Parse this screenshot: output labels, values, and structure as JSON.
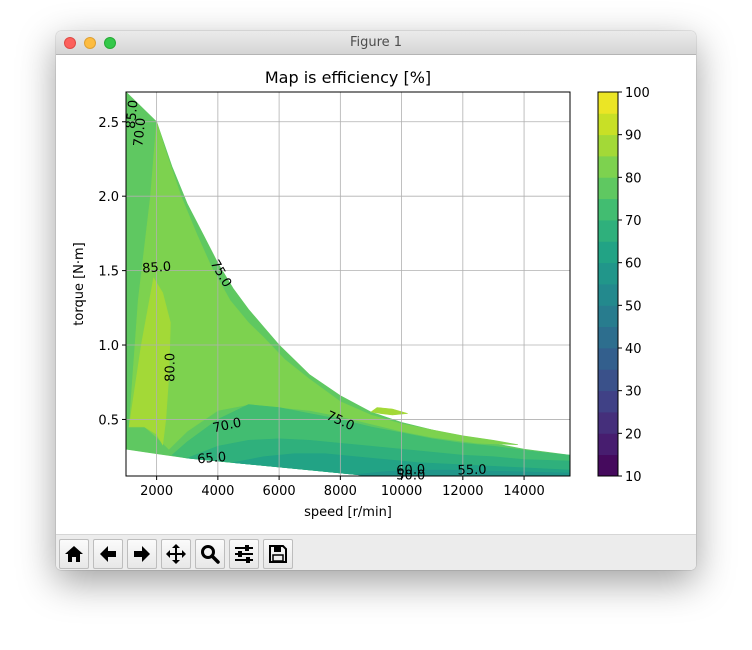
{
  "window": {
    "title": "Figure 1"
  },
  "toolbar": {
    "buttons": [
      {
        "name": "home-button",
        "icon": "home-icon"
      },
      {
        "name": "back-button",
        "icon": "arrow-left-icon"
      },
      {
        "name": "forward-button",
        "icon": "arrow-right-icon"
      },
      {
        "name": "pan-button",
        "icon": "move-icon"
      },
      {
        "name": "zoom-button",
        "icon": "magnifier-icon"
      },
      {
        "name": "configure-subplots-button",
        "icon": "sliders-icon"
      },
      {
        "name": "save-button",
        "icon": "floppy-disk-icon"
      }
    ]
  },
  "chart_data": {
    "type": "heatmap",
    "subtype": "filled-contour",
    "title": "Map is efficiency [%]",
    "xlabel": "speed [r/min]",
    "ylabel": "torque [N·m]",
    "xlim": [
      1000,
      15500
    ],
    "ylim": [
      0.12,
      2.7
    ],
    "xticks": [
      2000,
      4000,
      6000,
      8000,
      10000,
      12000,
      14000
    ],
    "yticks": [
      0.5,
      1.0,
      1.5,
      2.0,
      2.5
    ],
    "yticklabels": [
      "0.5",
      "1.0",
      "1.5",
      "2.0",
      "2.5"
    ],
    "grid": true,
    "colormap": "viridis",
    "colorbar": {
      "levels": [
        10,
        15,
        20,
        25,
        30,
        35,
        40,
        45,
        50,
        55,
        60,
        65,
        70,
        75,
        80,
        85,
        90,
        95,
        100
      ],
      "ticks": [
        10,
        20,
        30,
        40,
        50,
        60,
        70,
        80,
        90,
        100
      ]
    },
    "operating_envelope": [
      [
        1000,
        0.3
      ],
      [
        1000,
        2.7
      ],
      [
        1500,
        2.6
      ],
      [
        2000,
        2.5
      ],
      [
        2500,
        2.2
      ],
      [
        3000,
        1.95
      ],
      [
        3500,
        1.75
      ],
      [
        4000,
        1.55
      ],
      [
        4500,
        1.38
      ],
      [
        5000,
        1.24
      ],
      [
        5500,
        1.12
      ],
      [
        6000,
        1.0
      ],
      [
        6500,
        0.9
      ],
      [
        7000,
        0.8
      ],
      [
        8000,
        0.66
      ],
      [
        9000,
        0.55
      ],
      [
        10000,
        0.48
      ],
      [
        11000,
        0.43
      ],
      [
        12000,
        0.38
      ],
      [
        13000,
        0.34
      ],
      [
        14000,
        0.3
      ],
      [
        15500,
        0.26
      ],
      [
        15500,
        0.12
      ],
      [
        9000,
        0.12
      ],
      [
        7000,
        0.16
      ],
      [
        5000,
        0.2
      ],
      [
        3000,
        0.24
      ],
      [
        2000,
        0.27
      ],
      [
        1000,
        0.3
      ]
    ],
    "regions": [
      {
        "level": 75,
        "polygon": [
          [
            1000,
            0.5
          ],
          [
            1000,
            2.7
          ],
          [
            1500,
            2.6
          ],
          [
            2000,
            2.5
          ],
          [
            2500,
            2.2
          ],
          [
            3000,
            1.95
          ],
          [
            3500,
            1.75
          ],
          [
            4000,
            1.55
          ],
          [
            4500,
            1.38
          ],
          [
            5000,
            1.24
          ],
          [
            5500,
            1.12
          ],
          [
            6000,
            1.0
          ],
          [
            6500,
            0.9
          ],
          [
            7000,
            0.8
          ],
          [
            8000,
            0.66
          ],
          [
            9000,
            0.55
          ],
          [
            10000,
            0.48
          ],
          [
            11000,
            0.43
          ],
          [
            12000,
            0.38
          ],
          [
            13000,
            0.34
          ],
          [
            14000,
            0.3
          ],
          [
            15500,
            0.26
          ],
          [
            15500,
            0.12
          ],
          [
            9000,
            0.12
          ],
          [
            7000,
            0.16
          ],
          [
            5000,
            0.2
          ],
          [
            3000,
            0.24
          ],
          [
            2000,
            0.27
          ],
          [
            1000,
            0.3
          ]
        ]
      },
      {
        "level": 80,
        "polygon": [
          [
            1100,
            0.45
          ],
          [
            1400,
            1.3
          ],
          [
            1800,
            2.0
          ],
          [
            2000,
            2.5
          ],
          [
            2300,
            2.3
          ],
          [
            2800,
            2.0
          ],
          [
            3300,
            1.75
          ],
          [
            3800,
            1.52
          ],
          [
            4400,
            1.3
          ],
          [
            5000,
            1.15
          ],
          [
            5500,
            1.05
          ],
          [
            6200,
            0.9
          ],
          [
            7000,
            0.77
          ],
          [
            8000,
            0.62
          ],
          [
            9000,
            0.53
          ],
          [
            10000,
            0.47
          ],
          [
            11000,
            0.43
          ],
          [
            12000,
            0.39
          ],
          [
            13000,
            0.36
          ],
          [
            13800,
            0.33
          ],
          [
            12500,
            0.34
          ],
          [
            11000,
            0.38
          ],
          [
            10000,
            0.42
          ],
          [
            9000,
            0.47
          ],
          [
            8000,
            0.52
          ],
          [
            7000,
            0.56
          ],
          [
            6000,
            0.58
          ],
          [
            5000,
            0.6
          ],
          [
            4000,
            0.56
          ],
          [
            3000,
            0.42
          ],
          [
            2400,
            0.3
          ],
          [
            2000,
            0.38
          ],
          [
            1500,
            0.47
          ]
        ]
      },
      {
        "level": 85,
        "polygon": [
          [
            1100,
            0.45
          ],
          [
            1500,
            1.0
          ],
          [
            1900,
            1.45
          ],
          [
            2200,
            1.35
          ],
          [
            2450,
            1.15
          ],
          [
            2400,
            0.8
          ],
          [
            2300,
            0.5
          ],
          [
            2200,
            0.33
          ],
          [
            2000,
            0.4
          ],
          [
            1600,
            0.45
          ]
        ]
      },
      {
        "level": 70,
        "polygon": [
          [
            2500,
            0.26
          ],
          [
            3000,
            0.35
          ],
          [
            4000,
            0.5
          ],
          [
            5000,
            0.6
          ],
          [
            6000,
            0.58
          ],
          [
            7000,
            0.54
          ],
          [
            8000,
            0.5
          ],
          [
            9000,
            0.45
          ],
          [
            10000,
            0.41
          ],
          [
            11000,
            0.37
          ],
          [
            12000,
            0.34
          ],
          [
            13000,
            0.32
          ],
          [
            14500,
            0.28
          ],
          [
            15500,
            0.26
          ],
          [
            15500,
            0.12
          ],
          [
            9000,
            0.12
          ],
          [
            7000,
            0.16
          ],
          [
            5000,
            0.2
          ],
          [
            3000,
            0.24
          ]
        ]
      },
      {
        "level": 65,
        "polygon": [
          [
            3000,
            0.24
          ],
          [
            4000,
            0.32
          ],
          [
            5000,
            0.36
          ],
          [
            6000,
            0.37
          ],
          [
            7000,
            0.36
          ],
          [
            8000,
            0.34
          ],
          [
            9000,
            0.32
          ],
          [
            10000,
            0.3
          ],
          [
            11000,
            0.28
          ],
          [
            12000,
            0.26
          ],
          [
            13000,
            0.25
          ],
          [
            14000,
            0.23
          ],
          [
            15500,
            0.22
          ],
          [
            15500,
            0.12
          ],
          [
            9000,
            0.12
          ],
          [
            7000,
            0.16
          ],
          [
            5000,
            0.2
          ]
        ]
      },
      {
        "level": 60,
        "polygon": [
          [
            4500,
            0.21
          ],
          [
            5500,
            0.25
          ],
          [
            6500,
            0.27
          ],
          [
            7500,
            0.27
          ],
          [
            8500,
            0.25
          ],
          [
            9500,
            0.23
          ],
          [
            10500,
            0.21
          ],
          [
            11500,
            0.2
          ],
          [
            12500,
            0.19
          ],
          [
            13500,
            0.18
          ],
          [
            14500,
            0.17
          ],
          [
            15500,
            0.16
          ],
          [
            15500,
            0.12
          ],
          [
            9000,
            0.12
          ],
          [
            7000,
            0.16
          ],
          [
            5000,
            0.2
          ]
        ]
      },
      {
        "level": 55,
        "polygon": [
          [
            8500,
            0.13
          ],
          [
            9500,
            0.15
          ],
          [
            10500,
            0.16
          ],
          [
            11500,
            0.16
          ],
          [
            12500,
            0.155
          ],
          [
            13500,
            0.15
          ],
          [
            15500,
            0.14
          ],
          [
            15500,
            0.12
          ],
          [
            9000,
            0.12
          ]
        ]
      },
      {
        "level": 85,
        "polygon": [
          [
            9000,
            0.55
          ],
          [
            9200,
            0.58
          ],
          [
            9700,
            0.57
          ],
          [
            10200,
            0.54
          ],
          [
            9700,
            0.53
          ],
          [
            9300,
            0.54
          ]
        ]
      }
    ],
    "contour_labels": [
      {
        "text": "85.0",
        "x": 1200,
        "y": 2.55,
        "rotation": -84
      },
      {
        "text": "70.0",
        "x": 1450,
        "y": 2.43,
        "rotation": -84
      },
      {
        "text": "85.0",
        "x": 2000,
        "y": 1.52,
        "rotation": -4
      },
      {
        "text": "75.0",
        "x": 4100,
        "y": 1.48,
        "rotation": 60
      },
      {
        "text": "80.0",
        "x": 2450,
        "y": 0.85,
        "rotation": -90
      },
      {
        "text": "70.0",
        "x": 4300,
        "y": 0.46,
        "rotation": -12
      },
      {
        "text": "75.0",
        "x": 8000,
        "y": 0.49,
        "rotation": 24
      },
      {
        "text": "65.0",
        "x": 3800,
        "y": 0.24,
        "rotation": -5
      },
      {
        "text": "60.0",
        "x": 10300,
        "y": 0.16,
        "rotation": -3
      },
      {
        "text": "50.0",
        "x": 10300,
        "y": 0.125,
        "rotation": 0
      },
      {
        "text": "55.0",
        "x": 12300,
        "y": 0.16,
        "rotation": -2
      }
    ]
  }
}
